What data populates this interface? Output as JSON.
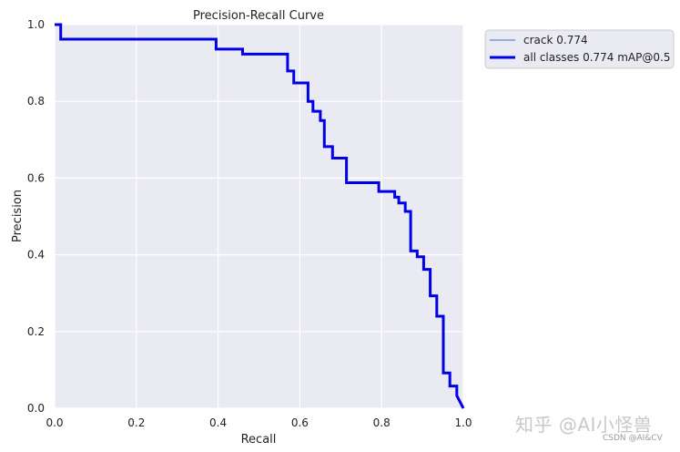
{
  "chart_data": {
    "type": "line",
    "title": "Precision-Recall Curve",
    "xlabel": "Recall",
    "ylabel": "Precision",
    "xlim": [
      0,
      1
    ],
    "ylim": [
      0,
      1
    ],
    "xticks": [
      "0.0",
      "0.2",
      "0.4",
      "0.6",
      "0.8",
      "1.0"
    ],
    "yticks": [
      "0.0",
      "0.2",
      "0.4",
      "0.6",
      "0.8",
      "1.0"
    ],
    "grid": true,
    "legend_position": "outside-top-right",
    "series": [
      {
        "name": "crack 0.774",
        "color": "#3a70c0",
        "style": "thin",
        "x": [
          0,
          0.015,
          0.015,
          0.395,
          0.395,
          0.46,
          0.46,
          0.57,
          0.57,
          0.585,
          0.585,
          0.62,
          0.62,
          0.632,
          0.632,
          0.65,
          0.65,
          0.66,
          0.66,
          0.68,
          0.68,
          0.714,
          0.714,
          0.793,
          0.793,
          0.832,
          0.832,
          0.842,
          0.842,
          0.858,
          0.858,
          0.871,
          0.871,
          0.887,
          0.887,
          0.903,
          0.903,
          0.919,
          0.919,
          0.935,
          0.935,
          0.951,
          0.951,
          0.967,
          0.967,
          0.984,
          0.984,
          1.0
        ],
        "y": [
          1.0,
          1.0,
          0.962,
          0.962,
          0.936,
          0.936,
          0.923,
          0.923,
          0.879,
          0.879,
          0.848,
          0.848,
          0.8,
          0.8,
          0.774,
          0.774,
          0.75,
          0.75,
          0.682,
          0.682,
          0.652,
          0.652,
          0.588,
          0.588,
          0.565,
          0.565,
          0.55,
          0.55,
          0.535,
          0.535,
          0.513,
          0.513,
          0.41,
          0.41,
          0.395,
          0.395,
          0.362,
          0.362,
          0.293,
          0.293,
          0.24,
          0.24,
          0.092,
          0.092,
          0.058,
          0.058,
          0.033,
          0.0
        ]
      },
      {
        "name": "all classes 0.774 mAP@0.5",
        "color": "#0000e6",
        "style": "thick",
        "x": [
          0,
          0.015,
          0.015,
          0.395,
          0.395,
          0.46,
          0.46,
          0.57,
          0.57,
          0.585,
          0.585,
          0.62,
          0.62,
          0.632,
          0.632,
          0.65,
          0.65,
          0.66,
          0.66,
          0.68,
          0.68,
          0.714,
          0.714,
          0.793,
          0.793,
          0.832,
          0.832,
          0.842,
          0.842,
          0.858,
          0.858,
          0.871,
          0.871,
          0.887,
          0.887,
          0.903,
          0.903,
          0.919,
          0.919,
          0.935,
          0.935,
          0.951,
          0.951,
          0.967,
          0.967,
          0.984,
          0.984,
          1.0
        ],
        "y": [
          1.0,
          1.0,
          0.962,
          0.962,
          0.936,
          0.936,
          0.923,
          0.923,
          0.879,
          0.879,
          0.848,
          0.848,
          0.8,
          0.8,
          0.774,
          0.774,
          0.75,
          0.75,
          0.682,
          0.682,
          0.652,
          0.652,
          0.588,
          0.588,
          0.565,
          0.565,
          0.55,
          0.55,
          0.535,
          0.535,
          0.513,
          0.513,
          0.41,
          0.41,
          0.395,
          0.395,
          0.362,
          0.362,
          0.293,
          0.293,
          0.24,
          0.24,
          0.092,
          0.092,
          0.058,
          0.058,
          0.033,
          0.0
        ]
      }
    ]
  },
  "watermark": "知乎 @AI小怪兽",
  "credit": "CSDN @AI&CV"
}
